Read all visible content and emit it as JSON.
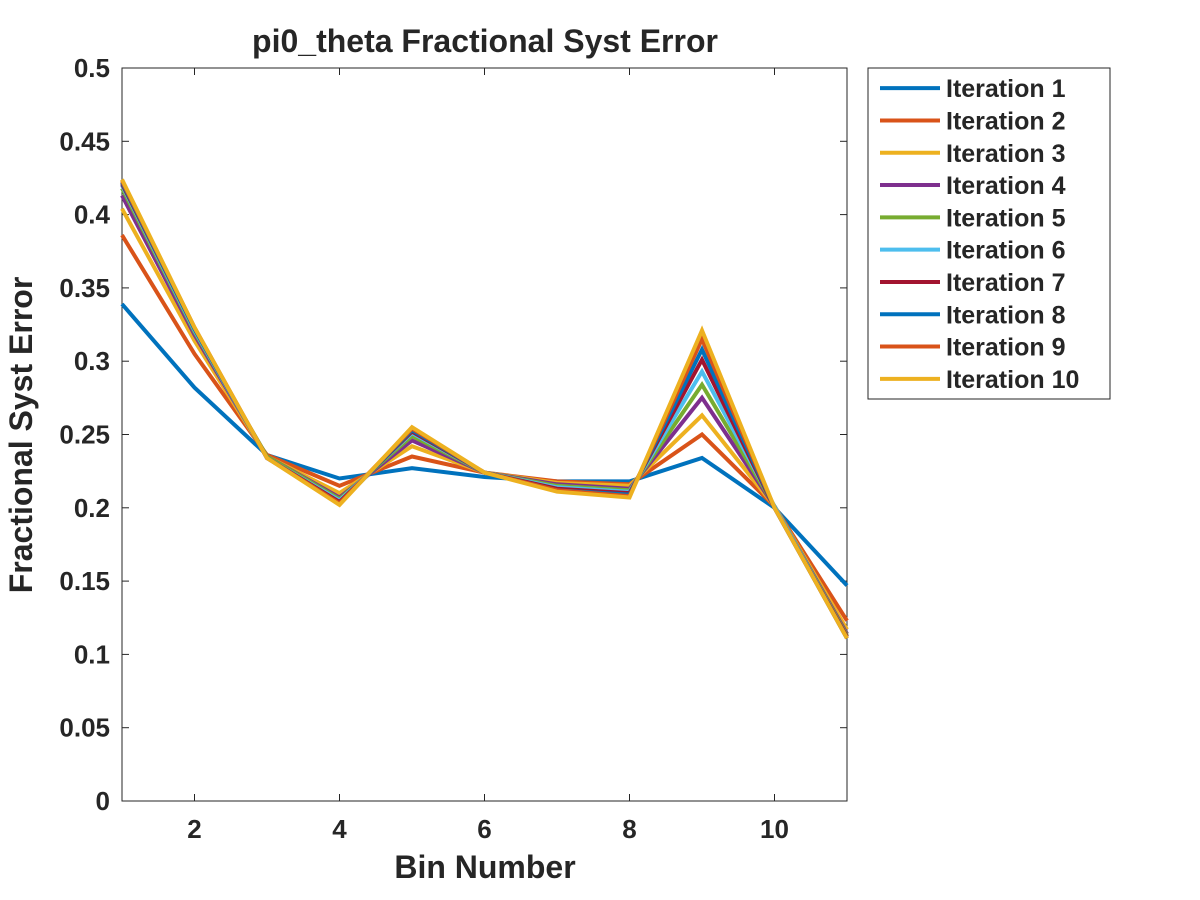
{
  "chart_data": {
    "type": "line",
    "title": "pi0_theta Fractional Syst Error",
    "xlabel": "Bin Number",
    "ylabel": "Fractional Syst Error",
    "xlim": [
      1,
      11
    ],
    "ylim": [
      0,
      0.5
    ],
    "xticks": [
      2,
      4,
      6,
      8,
      10
    ],
    "yticks": [
      0,
      0.05,
      0.1,
      0.15,
      0.2,
      0.25,
      0.3,
      0.35,
      0.4,
      0.45,
      0.5
    ],
    "x": [
      1,
      2,
      3,
      4,
      5,
      6,
      7,
      8,
      9,
      10,
      11
    ],
    "grid": false,
    "legend_position": "outside-top-right",
    "series": [
      {
        "name": "Iteration 1",
        "color": "#0072BD",
        "values": [
          0.339,
          0.282,
          0.236,
          0.22,
          0.227,
          0.221,
          0.218,
          0.218,
          0.234,
          0.2,
          0.147
        ]
      },
      {
        "name": "Iteration 2",
        "color": "#D95319",
        "values": [
          0.386,
          0.305,
          0.236,
          0.215,
          0.235,
          0.224,
          0.218,
          0.216,
          0.25,
          0.201,
          0.123
        ]
      },
      {
        "name": "Iteration 3",
        "color": "#EDB120",
        "values": [
          0.404,
          0.314,
          0.235,
          0.21,
          0.242,
          0.224,
          0.217,
          0.215,
          0.263,
          0.201,
          0.117
        ]
      },
      {
        "name": "Iteration 4",
        "color": "#7E2F8E",
        "values": [
          0.413,
          0.318,
          0.235,
          0.207,
          0.246,
          0.224,
          0.216,
          0.213,
          0.275,
          0.201,
          0.114
        ]
      },
      {
        "name": "Iteration 5",
        "color": "#77AC30",
        "values": [
          0.418,
          0.32,
          0.235,
          0.206,
          0.249,
          0.224,
          0.215,
          0.212,
          0.284,
          0.201,
          0.113
        ]
      },
      {
        "name": "Iteration 6",
        "color": "#4DBEEE",
        "values": [
          0.42,
          0.321,
          0.234,
          0.205,
          0.251,
          0.224,
          0.214,
          0.211,
          0.293,
          0.201,
          0.112
        ]
      },
      {
        "name": "Iteration 7",
        "color": "#A2142F",
        "values": [
          0.421,
          0.322,
          0.234,
          0.204,
          0.252,
          0.224,
          0.213,
          0.21,
          0.301,
          0.2,
          0.112
        ]
      },
      {
        "name": "Iteration 8",
        "color": "#0072BD",
        "values": [
          0.422,
          0.322,
          0.234,
          0.203,
          0.253,
          0.224,
          0.212,
          0.209,
          0.308,
          0.2,
          0.111
        ]
      },
      {
        "name": "Iteration 9",
        "color": "#D95319",
        "values": [
          0.423,
          0.323,
          0.234,
          0.203,
          0.254,
          0.224,
          0.212,
          0.208,
          0.315,
          0.2,
          0.111
        ]
      },
      {
        "name": "Iteration 10",
        "color": "#EDB120",
        "values": [
          0.424,
          0.323,
          0.234,
          0.202,
          0.255,
          0.224,
          0.211,
          0.207,
          0.321,
          0.2,
          0.111
        ]
      }
    ]
  }
}
